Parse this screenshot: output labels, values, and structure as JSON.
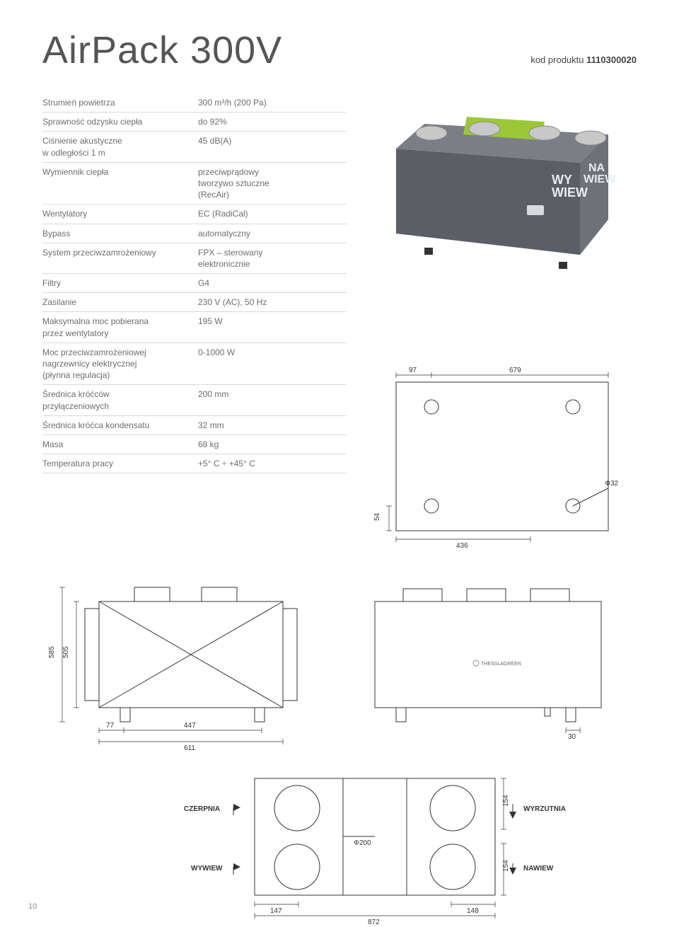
{
  "title": "AirPack 300V",
  "kod_prefix": "kod produktu ",
  "kod_value": "1110300020",
  "specs": [
    {
      "label": "Strumień powietrza",
      "value": "300 m³/h (200 Pa)"
    },
    {
      "label": "Sprawność odzysku ciepła",
      "value": "do 92%"
    },
    {
      "label": "Ciśnienie akustyczne\nw odległości 1 m",
      "value": "45 dB(A)"
    },
    {
      "label": "Wymiennik ciepła",
      "value": "przeciwprądowy\ntworzywo sztuczne\n(RecAir)"
    },
    {
      "label": "Wentylatory",
      "value": "EC (RadiCal)"
    },
    {
      "label": "Bypass",
      "value": "automatyczny"
    },
    {
      "label": "System przeciwzamrożeniowy",
      "value": "FPX – sterowany\nelektronicznie"
    },
    {
      "label": "Filtry",
      "value": "G4"
    },
    {
      "label": "Zasilanie",
      "value": "230 V (AC), 50 Hz"
    },
    {
      "label": "Maksymalna moc pobierana\nprzez wentylatory",
      "value": "195 W"
    },
    {
      "label": "Moc przeciwzamrożeniowej\nnagrzewnicy elektrycznej\n(płynna regulacja)",
      "value": "0-1000 W"
    },
    {
      "label": "Średnica króćców\nprzyłączeniowych",
      "value": "200 mm"
    },
    {
      "label": "Średnica króćca kondensatu",
      "value": "32 mm"
    },
    {
      "label": "Masa",
      "value": "68 kg"
    },
    {
      "label": "Temperatura pracy",
      "value": "+5° C ÷ +45° C"
    }
  ],
  "top_dims": {
    "d1": "97",
    "d2": "679",
    "phi32": "Φ32",
    "h54": "54",
    "w436": "436"
  },
  "side_dims": {
    "h585": "585",
    "h505": "505",
    "d77": "77",
    "d447": "447",
    "w611": "611",
    "d30": "30"
  },
  "bottom_dims": {
    "czerpnia": "CZERPNIA",
    "wyrzutnia": "WYRZUTNIA",
    "wywiew": "WYWIEW",
    "nawiew": "NAWIEW",
    "h154a": "154",
    "h154b": "154",
    "phi200": "Φ200",
    "d147": "147",
    "d148": "148",
    "w872": "872"
  },
  "page": "10"
}
